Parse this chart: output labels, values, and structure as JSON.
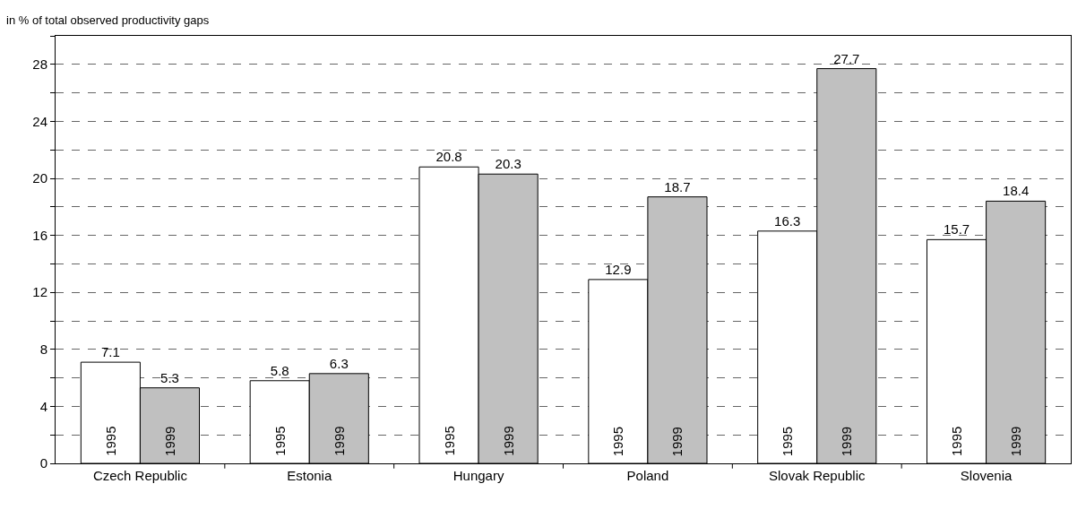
{
  "chart_data": {
    "type": "bar",
    "ylabel": "in % of total observed productivity gaps",
    "categories": [
      "Czech Republic",
      "Estonia",
      "Hungary",
      "Poland",
      "Slovak Republic",
      "Slovenia"
    ],
    "series": [
      {
        "name": "1995",
        "color": "#ffffff",
        "values": [
          7.1,
          5.8,
          20.8,
          12.9,
          16.3,
          15.7
        ]
      },
      {
        "name": "1999",
        "color": "#c0c0c0",
        "values": [
          5.3,
          6.3,
          20.3,
          18.7,
          27.7,
          18.4
        ]
      }
    ],
    "ylim": [
      0,
      30
    ],
    "yticks": [
      0,
      {
        "value": 2,
        "label": null
      },
      4,
      {
        "value": 6,
        "label": null
      },
      8,
      {
        "value": 10,
        "label": null
      },
      12,
      {
        "value": 14,
        "label": null
      },
      16,
      {
        "value": 18,
        "label": null
      },
      20,
      {
        "value": 22,
        "label": null
      },
      24,
      {
        "value": 26,
        "label": null
      },
      28,
      {
        "value": 30,
        "label": null
      }
    ],
    "grid": "y",
    "data_labels": true,
    "legend": false
  }
}
